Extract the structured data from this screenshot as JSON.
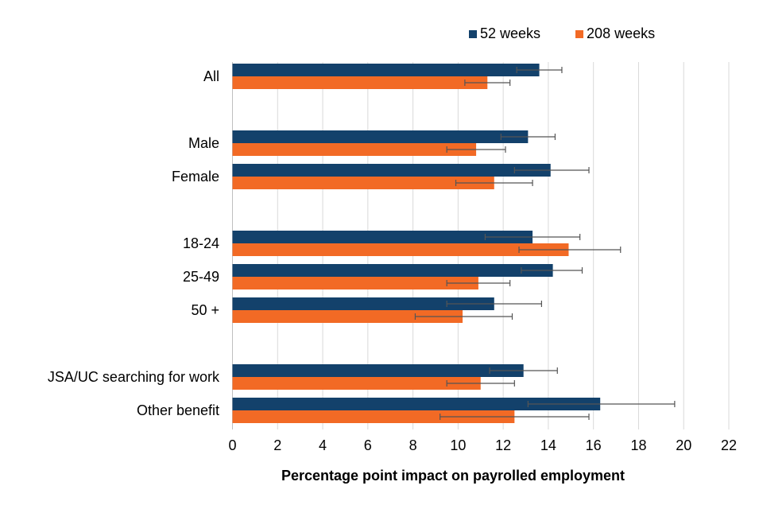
{
  "chart_data": {
    "type": "bar",
    "orientation": "horizontal",
    "title": "",
    "xlabel": "Percentage point impact on payrolled employment",
    "ylabel": "",
    "xlim": [
      0,
      22
    ],
    "xticks": [
      "0",
      "2",
      "4",
      "6",
      "8",
      "10",
      "12",
      "14",
      "16",
      "18",
      "20",
      "22"
    ],
    "grid": true,
    "legend_position": "top-right",
    "categories": [
      "All",
      "Male",
      "Female",
      "18-24",
      "25-49",
      "50 +",
      "JSA/UC searching for work",
      "Other benefit"
    ],
    "group_gap_after": [
      "All",
      "Female",
      "50 +"
    ],
    "series": [
      {
        "name": "52 weeks",
        "color": "#13416b",
        "values": [
          13.6,
          13.1,
          14.1,
          13.3,
          14.2,
          11.6,
          12.9,
          16.3
        ],
        "error_low": [
          12.6,
          11.9,
          12.5,
          11.2,
          12.8,
          9.5,
          11.4,
          13.1
        ],
        "error_high": [
          14.6,
          14.3,
          15.8,
          15.4,
          15.5,
          13.7,
          14.4,
          19.6
        ]
      },
      {
        "name": "208 weeks",
        "color": "#f26a25",
        "values": [
          11.3,
          10.8,
          11.6,
          14.9,
          10.9,
          10.2,
          11.0,
          12.5
        ],
        "error_low": [
          10.3,
          9.5,
          9.9,
          12.7,
          9.5,
          8.1,
          9.5,
          9.2
        ],
        "error_high": [
          12.3,
          12.1,
          13.3,
          17.2,
          12.3,
          12.4,
          12.5,
          15.8
        ]
      }
    ]
  }
}
